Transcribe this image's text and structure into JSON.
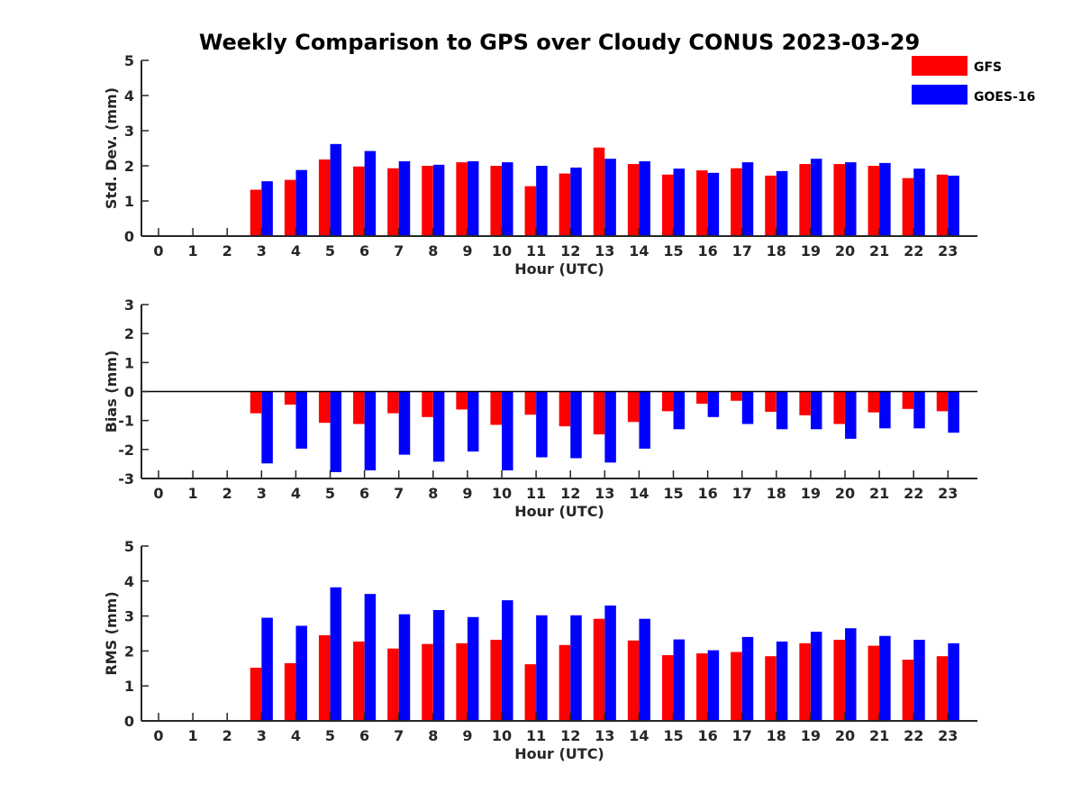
{
  "chart_data": {
    "type": "bar",
    "title": "Weekly Comparison to GPS over Cloudy CONUS 2023-03-29",
    "legend": {
      "placement": "top-right",
      "entries": [
        {
          "name": "GFS",
          "color": "#ff0000"
        },
        {
          "name": "GOES-16",
          "color": "#0000ff"
        }
      ]
    },
    "categories": [
      "0",
      "1",
      "2",
      "3",
      "4",
      "5",
      "6",
      "7",
      "8",
      "9",
      "10",
      "11",
      "12",
      "13",
      "14",
      "15",
      "16",
      "17",
      "18",
      "19",
      "20",
      "21",
      "22",
      "23"
    ],
    "subplots": [
      {
        "ylabel": "Std. Dev. (mm)",
        "xlabel": "Hour (UTC)",
        "ylim": [
          0,
          5
        ],
        "yticks": [
          0,
          1,
          2,
          3,
          4,
          5
        ],
        "zero_line": false,
        "series": [
          {
            "name": "GFS",
            "values": [
              null,
              null,
              null,
              1.32,
              1.6,
              2.18,
              1.98,
              1.93,
              2.0,
              2.1,
              2.0,
              1.42,
              1.78,
              2.52,
              2.05,
              1.75,
              1.87,
              1.93,
              1.72,
              2.05,
              2.05,
              2.0,
              1.65,
              1.75
            ]
          },
          {
            "name": "GOES-16",
            "values": [
              null,
              null,
              null,
              1.56,
              1.88,
              2.62,
              2.42,
              2.13,
              2.03,
              2.13,
              2.1,
              2.0,
              1.95,
              2.2,
              2.13,
              1.92,
              1.8,
              2.1,
              1.85,
              2.2,
              2.1,
              2.08,
              1.92,
              1.72
            ]
          }
        ]
      },
      {
        "ylabel": "Bias (mm)",
        "xlabel": "Hour (UTC)",
        "ylim": [
          -3,
          3
        ],
        "yticks": [
          -3,
          -2,
          -1,
          0,
          1,
          2,
          3
        ],
        "zero_line": true,
        "series": [
          {
            "name": "GFS",
            "values": [
              null,
              null,
              null,
              -0.75,
              -0.45,
              -1.08,
              -1.12,
              -0.75,
              -0.88,
              -0.62,
              -1.15,
              -0.8,
              -1.2,
              -1.48,
              -1.05,
              -0.68,
              -0.42,
              -0.32,
              -0.7,
              -0.82,
              -1.12,
              -0.72,
              -0.6,
              -0.68
            ]
          },
          {
            "name": "GOES-16",
            "values": [
              null,
              null,
              null,
              -2.48,
              -1.97,
              -2.78,
              -2.72,
              -2.18,
              -2.42,
              -2.07,
              -2.72,
              -2.27,
              -2.3,
              -2.45,
              -1.97,
              -1.3,
              -0.88,
              -1.12,
              -1.3,
              -1.3,
              -1.63,
              -1.27,
              -1.27,
              -1.42
            ]
          }
        ]
      },
      {
        "ylabel": "RMS (mm)",
        "xlabel": "Hour (UTC)",
        "ylim": [
          0,
          5
        ],
        "yticks": [
          0,
          1,
          2,
          3,
          4,
          5
        ],
        "zero_line": false,
        "series": [
          {
            "name": "GFS",
            "values": [
              null,
              null,
              null,
              1.52,
              1.65,
              2.45,
              2.27,
              2.07,
              2.2,
              2.22,
              2.32,
              1.62,
              2.17,
              2.92,
              2.3,
              1.88,
              1.93,
              1.97,
              1.85,
              2.22,
              2.32,
              2.15,
              1.75,
              1.85
            ]
          },
          {
            "name": "GOES-16",
            "values": [
              null,
              null,
              null,
              2.95,
              2.72,
              3.82,
              3.63,
              3.05,
              3.17,
              2.97,
              3.45,
              3.02,
              3.02,
              3.3,
              2.92,
              2.33,
              2.02,
              2.4,
              2.27,
              2.55,
              2.65,
              2.43,
              2.32,
              2.22
            ]
          }
        ]
      }
    ]
  }
}
